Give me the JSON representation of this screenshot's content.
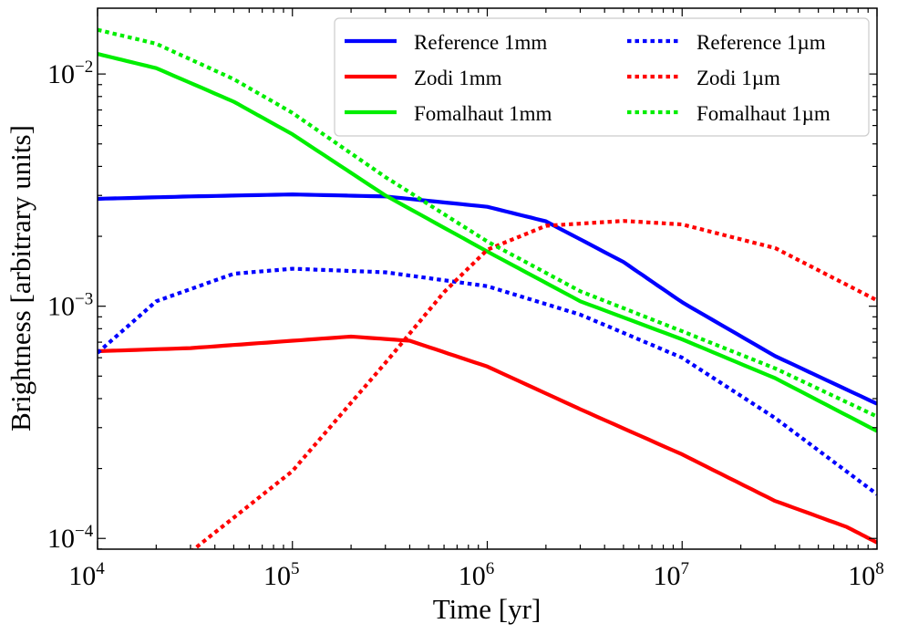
{
  "chart_data": {
    "type": "line",
    "xlabel": "Time [yr]",
    "ylabel": "Brightness [arbitrary units]",
    "xscale": "log",
    "yscale": "log",
    "xlim": [
      10000,
      100000000
    ],
    "ylim": [
      8.99e-05,
      0.0192
    ],
    "x_ticks": [
      {
        "value": 10000,
        "base": "10",
        "exp": "4"
      },
      {
        "value": 100000,
        "base": "10",
        "exp": "5"
      },
      {
        "value": 1000000,
        "base": "10",
        "exp": "6"
      },
      {
        "value": 10000000,
        "base": "10",
        "exp": "7"
      },
      {
        "value": 100000000,
        "base": "10",
        "exp": "8"
      }
    ],
    "y_ticks": [
      {
        "value": 0.0001,
        "base": "10",
        "exp": "−4"
      },
      {
        "value": 0.001,
        "base": "10",
        "exp": "−3"
      },
      {
        "value": 0.01,
        "base": "10",
        "exp": "−2"
      }
    ],
    "grid": false,
    "legend": {
      "position": "top-right",
      "columns": 2
    },
    "series": [
      {
        "name": "Reference 1mm",
        "color": "#0000ff",
        "style": "solid",
        "x": [
          10000,
          30000,
          100000,
          300000,
          1000000,
          2000000,
          5000000,
          10000000,
          30000000,
          100000000
        ],
        "y": [
          0.0029,
          0.00297,
          0.00303,
          0.00297,
          0.00268,
          0.00232,
          0.00155,
          0.00104,
          0.00061,
          0.00038
        ]
      },
      {
        "name": "Zodi 1mm",
        "color": "#ff0000",
        "style": "solid",
        "x": [
          10000,
          30000,
          100000,
          200000,
          400000,
          1000000,
          3000000,
          10000000,
          30000000,
          70000000,
          100000000
        ],
        "y": [
          0.00064,
          0.00066,
          0.00071,
          0.00074,
          0.00071,
          0.00055,
          0.00036,
          0.00023,
          0.000145,
          0.000112,
          9.6e-05
        ]
      },
      {
        "name": "Fomalhaut 1mm",
        "color": "#00ee00",
        "style": "solid",
        "x": [
          10000,
          20000,
          50000,
          100000,
          300000,
          1000000,
          3000000,
          10000000,
          30000000,
          100000000
        ],
        "y": [
          0.0122,
          0.0106,
          0.0076,
          0.0055,
          0.003,
          0.00172,
          0.00105,
          0.00072,
          0.00049,
          0.00029
        ]
      },
      {
        "name": "Reference 1µm",
        "color": "#0000ff",
        "style": "dotted",
        "x": [
          10000,
          20000,
          50000,
          100000,
          300000,
          1000000,
          3000000,
          10000000,
          30000000,
          100000000
        ],
        "y": [
          0.00063,
          0.00105,
          0.00138,
          0.00145,
          0.0014,
          0.00122,
          0.00092,
          0.0006,
          0.00033,
          0.000155
        ]
      },
      {
        "name": "Zodi 1µm",
        "color": "#ff0000",
        "style": "dotted",
        "x": [
          30000,
          100000,
          300000,
          600000,
          1000000,
          2000000,
          5000000,
          10000000,
          30000000,
          100000000
        ],
        "y": [
          8.75e-05,
          0.000195,
          0.00057,
          0.00115,
          0.00175,
          0.00222,
          0.00233,
          0.00225,
          0.00178,
          0.00106
        ]
      },
      {
        "name": "Fomalhaut 1µm",
        "color": "#00ee00",
        "style": "dotted",
        "x": [
          10000,
          20000,
          50000,
          100000,
          300000,
          1000000,
          3000000,
          10000000,
          30000000,
          100000000
        ],
        "y": [
          0.0155,
          0.0135,
          0.0095,
          0.0068,
          0.0036,
          0.0019,
          0.00116,
          0.00078,
          0.00054,
          0.000335
        ]
      }
    ]
  }
}
